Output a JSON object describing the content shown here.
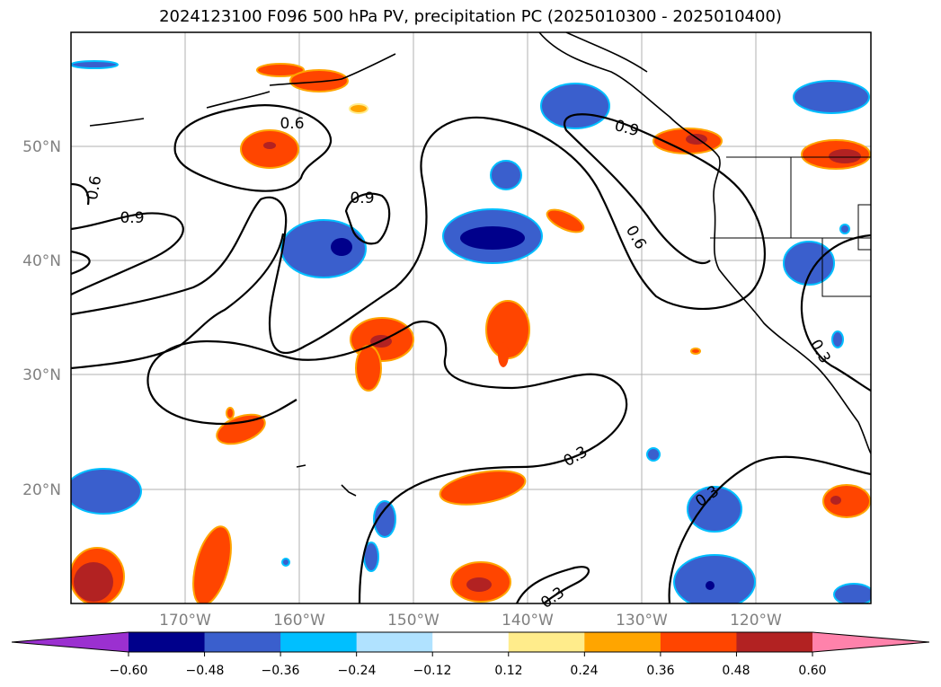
{
  "title": "2024123100 F096 500 hPa PV, precipitation PC (2025010300 - 2025010400)",
  "lat_labels": [
    "50°N",
    "40°N",
    "30°N",
    "20°N"
  ],
  "lon_labels": [
    "170°W",
    "160°W",
    "150°W",
    "140°W",
    "130°W",
    "120°W"
  ],
  "colorbar": {
    "tick_labels": [
      "−0.60",
      "−0.48",
      "−0.36",
      "−0.24",
      "−0.12",
      "0.12",
      "0.24",
      "0.36",
      "0.48",
      "0.60"
    ],
    "colors": [
      "#9b30d0",
      "#00008b",
      "#3a5fcd",
      "#00bfff",
      "#b0e2ff",
      "#ffffff",
      "#ffec8b",
      "#ffa500",
      "#ff4500",
      "#b22222",
      "#ff82ab"
    ]
  },
  "contour_labels": [
    "0.6",
    "0.6",
    "0.9",
    "0.9",
    "0.9",
    "0.6",
    "0.3",
    "0.3",
    "0.3",
    "0.3"
  ],
  "colors": {
    "neg_strong": "#00008b",
    "neg_mid": "#3a5fcd",
    "neg_light": "#00bfff",
    "pos_light": "#ffa500",
    "pos_mid": "#ff4500",
    "pos_strong": "#b22222"
  }
}
